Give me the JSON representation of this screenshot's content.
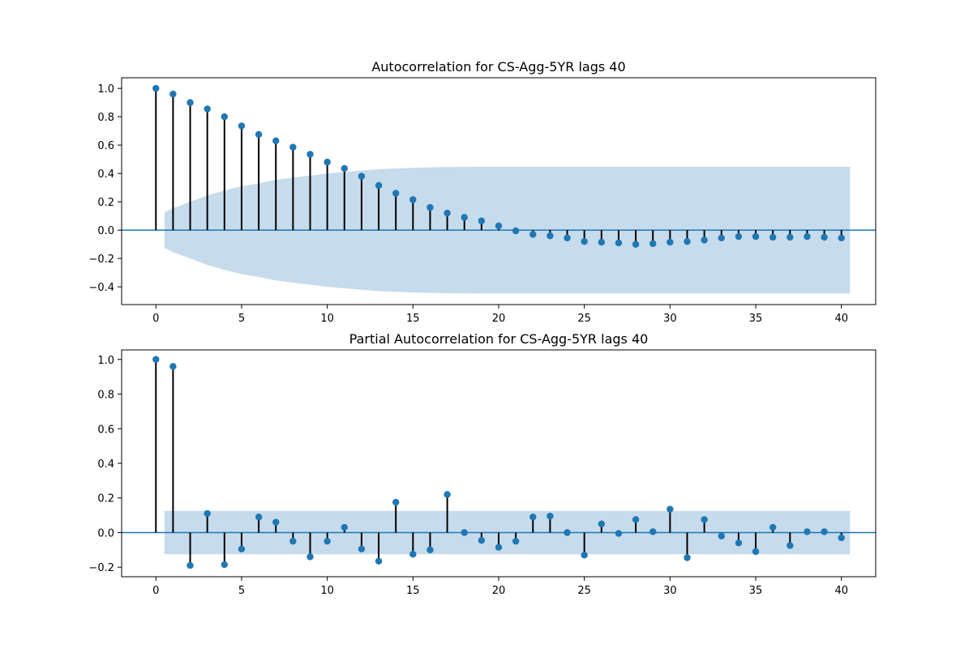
{
  "chart_data": [
    {
      "type": "stem",
      "title": "Autocorrelation for CS-Agg-5YR lags 40",
      "xlim": [
        -2,
        42
      ],
      "ylim": [
        -0.525,
        1.075
      ],
      "xticks": [
        0,
        5,
        10,
        15,
        20,
        25,
        30,
        35,
        40
      ],
      "yticks": [
        -0.4,
        -0.2,
        0.0,
        0.2,
        0.4,
        0.6,
        0.8,
        1.0
      ],
      "ytick_labels": [
        "−0.4",
        "−0.2",
        "0.0",
        "0.2",
        "0.4",
        "0.6",
        "0.8",
        "1.0"
      ],
      "x": [
        0,
        1,
        2,
        3,
        4,
        5,
        6,
        7,
        8,
        9,
        10,
        11,
        12,
        13,
        14,
        15,
        16,
        17,
        18,
        19,
        20,
        21,
        22,
        23,
        24,
        25,
        26,
        27,
        28,
        29,
        30,
        31,
        32,
        33,
        34,
        35,
        36,
        37,
        38,
        39,
        40
      ],
      "values": [
        1.0,
        0.96,
        0.9,
        0.855,
        0.8,
        0.735,
        0.675,
        0.63,
        0.585,
        0.535,
        0.48,
        0.435,
        0.38,
        0.315,
        0.26,
        0.215,
        0.16,
        0.12,
        0.09,
        0.065,
        0.03,
        -0.005,
        -0.03,
        -0.04,
        -0.055,
        -0.08,
        -0.085,
        -0.09,
        -0.1,
        -0.095,
        -0.085,
        -0.08,
        -0.07,
        -0.055,
        -0.045,
        -0.045,
        -0.05,
        -0.05,
        -0.045,
        -0.05,
        -0.055
      ],
      "confidence_band": {
        "x": [
          0.5,
          1,
          2,
          3,
          4,
          5,
          6,
          7,
          8,
          9,
          10,
          11,
          12,
          13,
          14,
          15,
          16,
          17,
          18,
          19,
          20,
          21,
          22,
          23,
          24,
          25,
          26,
          27,
          28,
          29,
          30,
          31,
          32,
          33,
          34,
          35,
          36,
          37,
          38,
          39,
          40.5
        ],
        "upper": [
          0.125,
          0.155,
          0.2,
          0.245,
          0.28,
          0.31,
          0.33,
          0.355,
          0.37,
          0.385,
          0.4,
          0.41,
          0.42,
          0.43,
          0.435,
          0.44,
          0.443,
          0.445,
          0.446,
          0.447,
          0.447,
          0.447,
          0.447,
          0.447,
          0.447,
          0.447,
          0.447,
          0.447,
          0.447,
          0.447,
          0.447,
          0.447,
          0.447,
          0.447,
          0.447,
          0.447,
          0.447,
          0.447,
          0.447,
          0.447,
          0.447
        ]
      },
      "grid": false,
      "colors": {
        "marker": "#1f77b4",
        "stem": "#000000",
        "band": "#c6dbec",
        "zero_line": "#1f77b4"
      }
    },
    {
      "type": "stem",
      "title": "Partial Autocorrelation for CS-Agg-5YR lags 40",
      "xlim": [
        -2,
        42
      ],
      "ylim": [
        -0.255,
        1.055
      ],
      "xticks": [
        0,
        5,
        10,
        15,
        20,
        25,
        30,
        35,
        40
      ],
      "yticks": [
        -0.2,
        0.0,
        0.2,
        0.4,
        0.6,
        0.8,
        1.0
      ],
      "ytick_labels": [
        "−0.2",
        "0.0",
        "0.2",
        "0.4",
        "0.6",
        "0.8",
        "1.0"
      ],
      "x": [
        0,
        1,
        2,
        3,
        4,
        5,
        6,
        7,
        8,
        9,
        10,
        11,
        12,
        13,
        14,
        15,
        16,
        17,
        18,
        19,
        20,
        21,
        22,
        23,
        24,
        25,
        26,
        27,
        28,
        29,
        30,
        31,
        32,
        33,
        34,
        35,
        36,
        37,
        38,
        39,
        40
      ],
      "values": [
        1.0,
        0.96,
        -0.19,
        0.11,
        -0.185,
        -0.095,
        0.09,
        0.06,
        -0.05,
        -0.14,
        -0.05,
        0.03,
        -0.095,
        -0.165,
        0.175,
        -0.125,
        -0.1,
        0.22,
        0.0,
        -0.045,
        -0.085,
        -0.05,
        0.09,
        0.095,
        0.0,
        -0.13,
        0.05,
        -0.005,
        0.075,
        0.005,
        0.135,
        -0.145,
        0.075,
        -0.02,
        -0.06,
        -0.11,
        0.03,
        -0.075,
        0.005,
        0.005,
        -0.03
      ],
      "confidence_band": {
        "x_start": 0.5,
        "x_end": 40.5,
        "upper": 0.125,
        "lower": -0.125
      },
      "grid": false,
      "colors": {
        "marker": "#1f77b4",
        "stem": "#000000",
        "band": "#c6dbec",
        "zero_line": "#1f77b4"
      }
    }
  ]
}
